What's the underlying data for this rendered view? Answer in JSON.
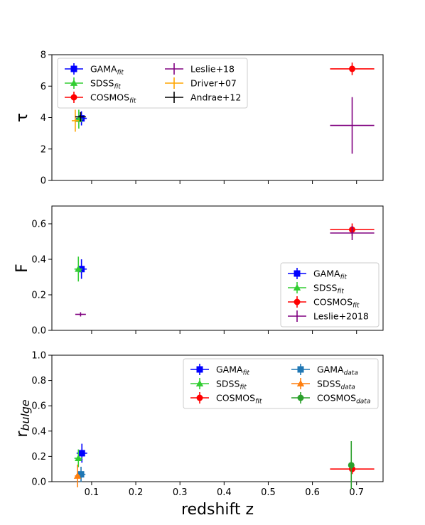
{
  "chart_data": [
    {
      "type": "scatter",
      "ylabel": "τ",
      "xlim": [
        0.01,
        0.76
      ],
      "ylim": [
        0,
        8
      ],
      "yticks": [
        "0",
        "2",
        "4",
        "6",
        "8"
      ],
      "legend": {
        "placement": "top-left",
        "columns": 2
      },
      "series": [
        {
          "name": "GAMA",
          "sub": "fit",
          "color": "#0000ff",
          "marker": "square",
          "points": [
            {
              "x": 0.077,
              "y": 3.95,
              "xerr": 0.012,
              "yerr": 0.45
            }
          ]
        },
        {
          "name": "SDSS",
          "sub": "fit",
          "color": "#32cd32",
          "marker": "triangle",
          "points": [
            {
              "x": 0.071,
              "y": 3.9,
              "xerr": 0.009,
              "yerr": 0.6
            }
          ]
        },
        {
          "name": "COSMOS",
          "sub": "fit",
          "color": "#ff0000",
          "marker": "circle",
          "points": [
            {
              "x": 0.69,
              "y": 7.1,
              "xerr": 0.05,
              "yerr": 0.4
            }
          ]
        },
        {
          "name": "Leslie+18",
          "sub": "",
          "color": "#800080",
          "marker": "none",
          "points": [
            {
              "x": 0.69,
              "y": 3.5,
              "xerr": 0.05,
              "yerr": 1.8
            }
          ]
        },
        {
          "name": "Driver+07",
          "sub": "",
          "color": "#ffa500",
          "marker": "none",
          "points": [
            {
              "x": 0.063,
              "y": 3.8,
              "xerr": 0.008,
              "yerr": 0.7
            }
          ]
        },
        {
          "name": "Andrae+12",
          "sub": "",
          "color": "#000000",
          "marker": "none",
          "points": [
            {
              "x": 0.075,
              "y": 4.05,
              "xerr": 0.012,
              "yerr": 0.3
            }
          ]
        }
      ]
    },
    {
      "type": "scatter",
      "ylabel": "F",
      "xlim": [
        0.01,
        0.76
      ],
      "ylim": [
        0,
        0.7
      ],
      "yticks": [
        "0.0",
        "0.2",
        "0.4",
        "0.6"
      ],
      "legend": {
        "placement": "lower-right",
        "columns": 1
      },
      "series": [
        {
          "name": "GAMA",
          "sub": "fit",
          "color": "#0000ff",
          "marker": "square",
          "points": [
            {
              "x": 0.077,
              "y": 0.345,
              "xerr": 0.012,
              "yerr": 0.055
            }
          ]
        },
        {
          "name": "SDSS",
          "sub": "fit",
          "color": "#32cd32",
          "marker": "triangle",
          "points": [
            {
              "x": 0.07,
              "y": 0.345,
              "xerr": 0.009,
              "yerr": 0.07
            }
          ]
        },
        {
          "name": "COSMOS",
          "sub": "fit",
          "color": "#ff0000",
          "marker": "circle",
          "points": [
            {
              "x": 0.69,
              "y": 0.567,
              "xerr": 0.05,
              "yerr": 0.035
            }
          ]
        },
        {
          "name": "Leslie+2018",
          "sub": "",
          "color": "#800080",
          "marker": "none",
          "points": [
            {
              "x": 0.075,
              "y": 0.09,
              "xerr": 0.012,
              "yerr": 0.012
            },
            {
              "x": 0.69,
              "y": 0.548,
              "xerr": 0.05,
              "yerr": 0.04
            }
          ]
        }
      ]
    },
    {
      "type": "scatter",
      "ylabel": "r",
      "ylabel_sub": "bulge",
      "xlabel": "redshift z",
      "xlim": [
        0.01,
        0.76
      ],
      "ylim": [
        0,
        1.0
      ],
      "xticks": [
        0.1,
        0.2,
        0.3,
        0.4,
        0.5,
        0.6,
        0.7
      ],
      "xticklabels": [
        "0.1",
        "0.2",
        "0.3",
        "0.4",
        "0.5",
        "0.6",
        "0.7"
      ],
      "yticks": [
        "0.0",
        "0.2",
        "0.4",
        "0.6",
        "0.8",
        "1.0"
      ],
      "legend": {
        "placement": "top-right",
        "columns": 2
      },
      "series": [
        {
          "name": "GAMA",
          "sub": "fit",
          "color": "#0000ff",
          "marker": "square",
          "points": [
            {
              "x": 0.078,
              "y": 0.225,
              "xerr": 0.012,
              "yerr": 0.075
            }
          ]
        },
        {
          "name": "SDSS",
          "sub": "fit",
          "color": "#32cd32",
          "marker": "triangle",
          "points": [
            {
              "x": 0.07,
              "y": 0.185,
              "xerr": 0.009,
              "yerr": 0.07
            }
          ]
        },
        {
          "name": "COSMOS",
          "sub": "fit",
          "color": "#ff0000",
          "marker": "circle",
          "points": [
            {
              "x": 0.69,
              "y": 0.1,
              "xerr": 0.05,
              "yerr": 0.04
            }
          ]
        },
        {
          "name": "GAMA",
          "sub": "data",
          "color": "#1f77b4",
          "marker": "square",
          "points": [
            {
              "x": 0.076,
              "y": 0.058,
              "xerr": 0.01,
              "yerr": 0.06
            }
          ]
        },
        {
          "name": "SDSS",
          "sub": "data",
          "color": "#ff7f0e",
          "marker": "triangle",
          "points": [
            {
              "x": 0.068,
              "y": 0.045,
              "xerr": 0.006,
              "yerr": 0.09
            }
          ]
        },
        {
          "name": "COSMOS",
          "sub": "data",
          "color": "#2ca02c",
          "marker": "circle",
          "points": [
            {
              "x": 0.688,
              "y": 0.13,
              "xerr": 0.004,
              "yerr": 0.19
            }
          ]
        }
      ]
    }
  ]
}
